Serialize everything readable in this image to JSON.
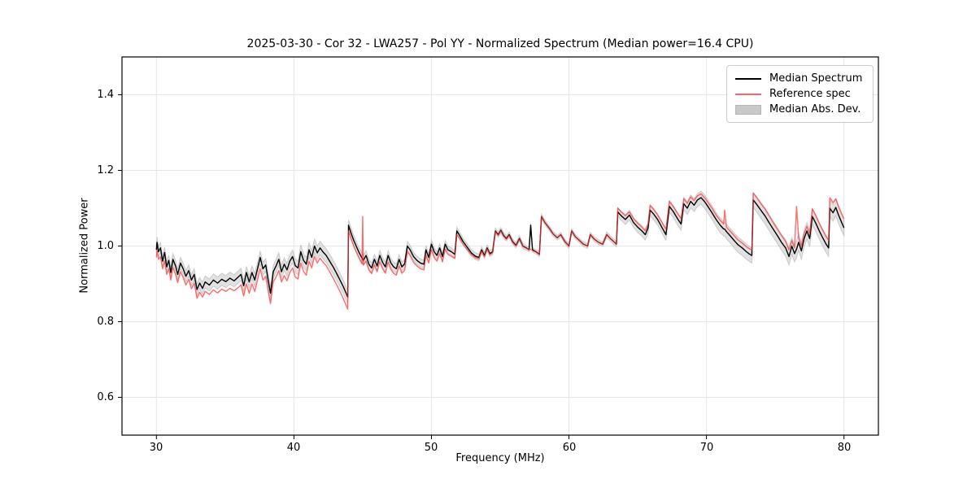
{
  "chart_data": {
    "type": "line",
    "title": "2025-03-30 - Cor 32 - LWA257 - Pol YY - Normalized Spectrum (Median power=16.4 CPU)",
    "xlabel": "Frequency (MHz)",
    "ylabel": "Normalized Power",
    "xlim": [
      27.5,
      82.5
    ],
    "ylim": [
      0.5,
      1.5
    ],
    "xticks": [
      30,
      40,
      50,
      60,
      70,
      80
    ],
    "yticks": [
      0.6,
      0.8,
      1.0,
      1.2,
      1.4
    ],
    "grid": true,
    "legend_position": "upper right",
    "series": [
      {
        "name": "Median Spectrum",
        "type": "line",
        "color": "#000000"
      },
      {
        "name": "Reference spec",
        "type": "line",
        "color": "#ff6666"
      },
      {
        "name": "Median Abs. Dev.",
        "type": "band",
        "color": "#c8c8c8",
        "around": "Median Spectrum"
      }
    ],
    "points_format": [
      "freq_mhz",
      "median",
      "reference",
      "mad_half_width"
    ],
    "points": [
      [
        30.0,
        0.99,
        0.97,
        0.014
      ],
      [
        30.05,
        1.01,
        0.988,
        0.014
      ],
      [
        30.15,
        0.985,
        0.965,
        0.014
      ],
      [
        30.3,
        0.995,
        0.972,
        0.014
      ],
      [
        30.45,
        0.96,
        0.94,
        0.014
      ],
      [
        30.6,
        0.983,
        0.96,
        0.014
      ],
      [
        30.75,
        0.945,
        0.925,
        0.014
      ],
      [
        30.9,
        0.962,
        0.94,
        0.014
      ],
      [
        31.05,
        0.93,
        0.91,
        0.015
      ],
      [
        31.2,
        0.965,
        0.943,
        0.015
      ],
      [
        31.4,
        0.947,
        0.925,
        0.015
      ],
      [
        31.55,
        0.925,
        0.903,
        0.015
      ],
      [
        31.75,
        0.955,
        0.932,
        0.015
      ],
      [
        31.95,
        0.94,
        0.917,
        0.015
      ],
      [
        32.15,
        0.92,
        0.897,
        0.015
      ],
      [
        32.35,
        0.935,
        0.912,
        0.015
      ],
      [
        32.55,
        0.91,
        0.887,
        0.015
      ],
      [
        32.75,
        0.925,
        0.902,
        0.015
      ],
      [
        32.95,
        0.885,
        0.862,
        0.015
      ],
      [
        33.15,
        0.902,
        0.878,
        0.015
      ],
      [
        33.35,
        0.888,
        0.865,
        0.016
      ],
      [
        33.55,
        0.905,
        0.88,
        0.016
      ],
      [
        33.85,
        0.897,
        0.872,
        0.016
      ],
      [
        34.15,
        0.91,
        0.884,
        0.016
      ],
      [
        34.45,
        0.902,
        0.876,
        0.016
      ],
      [
        34.75,
        0.912,
        0.886,
        0.016
      ],
      [
        35.05,
        0.906,
        0.88,
        0.016
      ],
      [
        35.35,
        0.915,
        0.888,
        0.016
      ],
      [
        35.65,
        0.908,
        0.882,
        0.016
      ],
      [
        35.95,
        0.918,
        0.89,
        0.016
      ],
      [
        36.15,
        0.925,
        0.897,
        0.016
      ],
      [
        36.35,
        0.895,
        0.868,
        0.016
      ],
      [
        36.55,
        0.93,
        0.9,
        0.016
      ],
      [
        36.75,
        0.905,
        0.875,
        0.016
      ],
      [
        36.95,
        0.93,
        0.9,
        0.017
      ],
      [
        37.15,
        0.91,
        0.88,
        0.017
      ],
      [
        37.35,
        0.94,
        0.91,
        0.017
      ],
      [
        37.55,
        0.97,
        0.94,
        0.017
      ],
      [
        37.75,
        0.94,
        0.91,
        0.017
      ],
      [
        37.95,
        0.95,
        0.92,
        0.017
      ],
      [
        38.15,
        0.905,
        0.877,
        0.017
      ],
      [
        38.3,
        0.875,
        0.848,
        0.017
      ],
      [
        38.5,
        0.932,
        0.905,
        0.017
      ],
      [
        38.7,
        0.947,
        0.918,
        0.017
      ],
      [
        38.9,
        0.965,
        0.935,
        0.017
      ],
      [
        39.1,
        0.932,
        0.905,
        0.017
      ],
      [
        39.3,
        0.952,
        0.922,
        0.017
      ],
      [
        39.5,
        0.937,
        0.908,
        0.017
      ],
      [
        39.7,
        0.96,
        0.93,
        0.017
      ],
      [
        39.9,
        0.972,
        0.942,
        0.017
      ],
      [
        40.1,
        0.948,
        0.918,
        0.018
      ],
      [
        40.3,
        0.942,
        0.913,
        0.018
      ],
      [
        40.5,
        0.985,
        0.955,
        0.018
      ],
      [
        40.7,
        0.962,
        0.933,
        0.018
      ],
      [
        40.9,
        0.952,
        0.923,
        0.018
      ],
      [
        41.1,
        0.99,
        0.96,
        0.018
      ],
      [
        41.3,
        0.97,
        0.942,
        0.018
      ],
      [
        41.5,
        1.0,
        0.972,
        0.018
      ],
      [
        41.7,
        0.982,
        0.955,
        0.018
      ],
      [
        41.9,
        0.995,
        0.968,
        0.018
      ],
      [
        42.1,
        0.985,
        0.958,
        0.018
      ],
      [
        42.35,
        0.975,
        0.948,
        0.018
      ],
      [
        42.6,
        0.96,
        0.932,
        0.018
      ],
      [
        42.85,
        0.945,
        0.915,
        0.018
      ],
      [
        43.1,
        0.928,
        0.898,
        0.018
      ],
      [
        43.35,
        0.91,
        0.88,
        0.018
      ],
      [
        43.6,
        0.892,
        0.86,
        0.018
      ],
      [
        43.8,
        0.875,
        0.843,
        0.018
      ],
      [
        43.92,
        0.865,
        0.833,
        0.018
      ],
      [
        43.97,
        1.055,
        1.04,
        0.014
      ],
      [
        44.15,
        1.035,
        1.02,
        0.014
      ],
      [
        44.35,
        1.015,
        1.0,
        0.014
      ],
      [
        44.55,
        0.998,
        0.983,
        0.013
      ],
      [
        44.75,
        0.982,
        0.967,
        0.013
      ],
      [
        44.95,
        0.968,
        0.953,
        0.013
      ],
      [
        45.0,
        0.965,
        1.078,
        0.013
      ],
      [
        45.05,
        0.962,
        0.95,
        0.013
      ],
      [
        45.25,
        0.975,
        0.96,
        0.013
      ],
      [
        45.45,
        0.952,
        0.937,
        0.013
      ],
      [
        45.65,
        0.942,
        0.927,
        0.013
      ],
      [
        45.85,
        0.965,
        0.95,
        0.013
      ],
      [
        46.05,
        0.947,
        0.932,
        0.013
      ],
      [
        46.25,
        0.975,
        0.958,
        0.013
      ],
      [
        46.45,
        0.957,
        0.94,
        0.013
      ],
      [
        46.65,
        0.945,
        0.928,
        0.013
      ],
      [
        46.85,
        0.975,
        0.957,
        0.013
      ],
      [
        47.05,
        0.955,
        0.938,
        0.012
      ],
      [
        47.25,
        0.945,
        0.928,
        0.012
      ],
      [
        47.45,
        0.94,
        0.923,
        0.012
      ],
      [
        47.65,
        0.965,
        0.947,
        0.012
      ],
      [
        47.85,
        0.945,
        0.928,
        0.012
      ],
      [
        48.05,
        0.953,
        0.936,
        0.012
      ],
      [
        48.25,
        1.0,
        0.985,
        0.012
      ],
      [
        48.45,
        0.99,
        0.975,
        0.012
      ],
      [
        48.7,
        0.972,
        0.957,
        0.011
      ],
      [
        48.95,
        0.962,
        0.947,
        0.011
      ],
      [
        49.2,
        0.955,
        0.94,
        0.011
      ],
      [
        49.45,
        0.952,
        0.937,
        0.011
      ],
      [
        49.6,
        0.99,
        0.975,
        0.011
      ],
      [
        49.8,
        0.97,
        0.955,
        0.011
      ],
      [
        50.0,
        1.005,
        0.99,
        0.011
      ],
      [
        50.2,
        0.985,
        0.97,
        0.011
      ],
      [
        50.4,
        0.975,
        0.96,
        0.01
      ],
      [
        50.6,
        0.995,
        0.98,
        0.01
      ],
      [
        50.8,
        0.972,
        0.958,
        0.01
      ],
      [
        51.0,
        1.005,
        0.992,
        0.01
      ],
      [
        51.2,
        0.99,
        0.978,
        0.01
      ],
      [
        51.45,
        0.985,
        0.973,
        0.01
      ],
      [
        51.7,
        0.978,
        0.967,
        0.01
      ],
      [
        51.85,
        1.04,
        1.03,
        0.01
      ],
      [
        52.05,
        1.028,
        1.02,
        0.009
      ],
      [
        52.3,
        1.012,
        1.005,
        0.009
      ],
      [
        52.6,
        0.997,
        0.991,
        0.009
      ],
      [
        52.9,
        0.982,
        0.977,
        0.009
      ],
      [
        53.2,
        0.973,
        0.969,
        0.009
      ],
      [
        53.45,
        0.97,
        0.966,
        0.009
      ],
      [
        53.65,
        0.99,
        0.986,
        0.008
      ],
      [
        53.85,
        0.975,
        0.972,
        0.008
      ],
      [
        54.05,
        0.995,
        0.992,
        0.008
      ],
      [
        54.25,
        0.98,
        0.977,
        0.008
      ],
      [
        54.45,
        0.985,
        0.982,
        0.008
      ],
      [
        54.65,
        1.04,
        1.038,
        0.008
      ],
      [
        54.85,
        1.03,
        1.028,
        0.007
      ],
      [
        55.05,
        1.042,
        1.04,
        0.007
      ],
      [
        55.25,
        1.028,
        1.026,
        0.007
      ],
      [
        55.45,
        1.02,
        1.018,
        0.007
      ],
      [
        55.65,
        1.03,
        1.028,
        0.007
      ],
      [
        55.9,
        1.012,
        1.01,
        0.007
      ],
      [
        56.15,
        1.002,
        1.0,
        0.007
      ],
      [
        56.4,
        1.02,
        1.018,
        0.007
      ],
      [
        56.65,
        1.0,
        0.999,
        0.007
      ],
      [
        56.9,
        0.995,
        0.994,
        0.006
      ],
      [
        57.1,
        0.99,
        0.99,
        0.006
      ],
      [
        57.22,
        1.055,
        0.992,
        0.006
      ],
      [
        57.35,
        0.99,
        0.988,
        0.006
      ],
      [
        57.6,
        0.985,
        0.984,
        0.006
      ],
      [
        57.85,
        0.978,
        0.977,
        0.006
      ],
      [
        58.0,
        1.078,
        1.078,
        0.006
      ],
      [
        58.25,
        1.062,
        1.062,
        0.006
      ],
      [
        58.55,
        1.048,
        1.048,
        0.006
      ],
      [
        58.85,
        1.032,
        1.032,
        0.006
      ],
      [
        59.15,
        1.022,
        1.022,
        0.006
      ],
      [
        59.4,
        1.03,
        1.03,
        0.006
      ],
      [
        59.7,
        1.012,
        1.012,
        0.006
      ],
      [
        60.0,
        1.0,
        1.0,
        0.006
      ],
      [
        60.2,
        1.04,
        1.04,
        0.006
      ],
      [
        60.45,
        1.025,
        1.025,
        0.006
      ],
      [
        60.75,
        1.015,
        1.015,
        0.006
      ],
      [
        61.05,
        1.005,
        1.005,
        0.006
      ],
      [
        61.35,
        1.0,
        1.0,
        0.006
      ],
      [
        61.55,
        1.03,
        1.03,
        0.006
      ],
      [
        61.85,
        1.018,
        1.018,
        0.006
      ],
      [
        62.15,
        1.01,
        1.01,
        0.006
      ],
      [
        62.45,
        1.005,
        1.005,
        0.006
      ],
      [
        62.75,
        1.03,
        1.03,
        0.007
      ],
      [
        63.0,
        1.02,
        1.02,
        0.007
      ],
      [
        63.25,
        1.012,
        1.012,
        0.007
      ],
      [
        63.45,
        1.005,
        1.005,
        0.007
      ],
      [
        63.55,
        1.09,
        1.1,
        0.012
      ],
      [
        63.8,
        1.08,
        1.09,
        0.012
      ],
      [
        64.1,
        1.07,
        1.08,
        0.013
      ],
      [
        64.4,
        1.082,
        1.09,
        0.013
      ],
      [
        64.7,
        1.062,
        1.072,
        0.013
      ],
      [
        65.0,
        1.05,
        1.06,
        0.014
      ],
      [
        65.3,
        1.04,
        1.05,
        0.014
      ],
      [
        65.55,
        1.03,
        1.04,
        0.014
      ],
      [
        65.75,
        1.048,
        1.058,
        0.014
      ],
      [
        65.9,
        1.095,
        1.107,
        0.015
      ],
      [
        66.15,
        1.085,
        1.097,
        0.015
      ],
      [
        66.45,
        1.07,
        1.082,
        0.015
      ],
      [
        66.75,
        1.05,
        1.063,
        0.015
      ],
      [
        67.05,
        1.03,
        1.045,
        0.015
      ],
      [
        67.3,
        1.105,
        1.118,
        0.016
      ],
      [
        67.6,
        1.09,
        1.103,
        0.016
      ],
      [
        67.9,
        1.072,
        1.086,
        0.016
      ],
      [
        68.15,
        1.058,
        1.072,
        0.016
      ],
      [
        68.35,
        1.112,
        1.125,
        0.017
      ],
      [
        68.6,
        1.1,
        1.113,
        0.017
      ],
      [
        68.85,
        1.118,
        1.13,
        0.017
      ],
      [
        69.1,
        1.108,
        1.12,
        0.017
      ],
      [
        69.35,
        1.122,
        1.133,
        0.017
      ],
      [
        69.6,
        1.128,
        1.138,
        0.017
      ],
      [
        69.85,
        1.118,
        1.128,
        0.018
      ],
      [
        70.1,
        1.105,
        1.116,
        0.018
      ],
      [
        70.4,
        1.088,
        1.1,
        0.018
      ],
      [
        70.7,
        1.07,
        1.082,
        0.018
      ],
      [
        71.0,
        1.055,
        1.068,
        0.019
      ],
      [
        71.25,
        1.045,
        1.058,
        0.019
      ],
      [
        71.32,
        1.045,
        1.095,
        0.019
      ],
      [
        71.45,
        1.038,
        1.05,
        0.019
      ],
      [
        71.7,
        1.028,
        1.04,
        0.019
      ],
      [
        72.0,
        1.015,
        1.028,
        0.02
      ],
      [
        72.3,
        1.003,
        1.016,
        0.02
      ],
      [
        72.6,
        0.995,
        1.008,
        0.02
      ],
      [
        72.9,
        0.985,
        0.998,
        0.02
      ],
      [
        73.15,
        0.978,
        0.992,
        0.02
      ],
      [
        73.3,
        0.975,
        0.99,
        0.02
      ],
      [
        73.4,
        1.122,
        1.14,
        0.02
      ],
      [
        73.65,
        1.11,
        1.128,
        0.02
      ],
      [
        73.95,
        1.095,
        1.112,
        0.021
      ],
      [
        74.25,
        1.08,
        1.098,
        0.021
      ],
      [
        74.55,
        1.062,
        1.08,
        0.021
      ],
      [
        74.85,
        1.045,
        1.062,
        0.021
      ],
      [
        75.15,
        1.028,
        1.045,
        0.021
      ],
      [
        75.45,
        1.01,
        1.028,
        0.021
      ],
      [
        75.75,
        0.995,
        1.012,
        0.022
      ],
      [
        76.0,
        0.972,
        0.99,
        0.022
      ],
      [
        76.2,
        1.0,
        1.015,
        0.022
      ],
      [
        76.4,
        0.98,
        0.995,
        0.022
      ],
      [
        76.55,
        0.992,
        1.105,
        0.022
      ],
      [
        76.7,
        1.01,
        1.022,
        0.022
      ],
      [
        76.9,
        0.987,
        1.0,
        0.022
      ],
      [
        77.1,
        1.02,
        1.033,
        0.022
      ],
      [
        77.3,
        1.04,
        1.052,
        0.022
      ],
      [
        77.5,
        1.02,
        1.033,
        0.022
      ],
      [
        77.7,
        1.078,
        1.098,
        0.022
      ],
      [
        77.95,
        1.06,
        1.08,
        0.022
      ],
      [
        78.2,
        1.04,
        1.06,
        0.022
      ],
      [
        78.45,
        1.022,
        1.042,
        0.022
      ],
      [
        78.7,
        1.005,
        1.025,
        0.022
      ],
      [
        78.88,
        0.995,
        1.015,
        0.022
      ],
      [
        78.97,
        1.1,
        1.128,
        0.022
      ],
      [
        79.2,
        1.088,
        1.115,
        0.022
      ],
      [
        79.4,
        1.102,
        1.125,
        0.022
      ],
      [
        79.6,
        1.082,
        1.105,
        0.022
      ],
      [
        79.8,
        1.065,
        1.088,
        0.022
      ],
      [
        80.0,
        1.048,
        1.072,
        0.022
      ]
    ]
  },
  "colors": {
    "background": "#ffffff",
    "grid": "#e6e6e6",
    "spine": "#000000",
    "median_line": "#000000",
    "reference_line": "#ff3333",
    "mad_band_fill": "#c8c8c8",
    "mad_band_edge": "#b5b5b5"
  }
}
